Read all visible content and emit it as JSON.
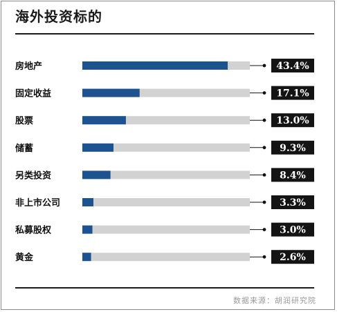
{
  "title": "海外投资标的",
  "source": "数据来源：胡润研究院",
  "colors": {
    "bar": "#1d5290",
    "track": "#d2d2d2",
    "label_bg": "#141414",
    "label_text": "#ffffff",
    "text": "#111111"
  },
  "chart_data": {
    "type": "bar",
    "orientation": "horizontal",
    "categories": [
      "房地产",
      "固定收益",
      "股票",
      "储蓄",
      "另类投资",
      "非上市公司",
      "私募股权",
      "黄金"
    ],
    "values": [
      43.4,
      17.1,
      13.0,
      9.3,
      8.4,
      3.3,
      3.0,
      2.6
    ],
    "value_labels": [
      "43.4%",
      "17.1%",
      "13.0%",
      "9.3%",
      "8.4%",
      "3.3%",
      "3.0%",
      "2.6%"
    ],
    "unit": "%",
    "xlim": [
      0,
      50
    ],
    "grid": false,
    "legend": false
  }
}
